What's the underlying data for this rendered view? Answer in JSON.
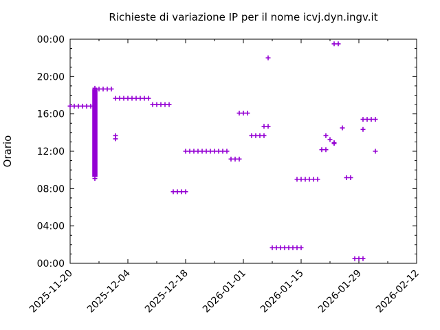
{
  "page": {
    "background": "#ffffff"
  },
  "chart_data": {
    "type": "scatter",
    "title": "Richieste di variazione IP per il nome icvj.dyn.ingv.it",
    "xlabel": "",
    "ylabel": "Orario",
    "legend": "none",
    "grid": false,
    "marker": "plus",
    "marker_color": "#9400d3",
    "axis_color": "#000000",
    "x_axis": {
      "start_date": "2025-11-20",
      "end_date": "2026-02-12",
      "major_tick_dates": [
        "2025-11-20",
        "2025-12-04",
        "2025-12-18",
        "2026-01-01",
        "2026-01-15",
        "2026-01-29",
        "2026-02-12"
      ],
      "minor_tick_interval_days": 7,
      "tick_label_rotation_deg": -45
    },
    "y_axis": {
      "span_hours": 24,
      "major_tick_interval_hours": 4,
      "minor_tick_interval_hours": 1,
      "major_tick_labels": [
        "00:00",
        "04:00",
        "08:00",
        "12:00",
        "16:00",
        "20:00",
        "00:00"
      ]
    },
    "dense_cluster": {
      "date": "2025-11-26",
      "time_start": "09:15",
      "time_end": "18:40"
    },
    "points": [
      {
        "date": "2025-11-20",
        "time": "16:50"
      },
      {
        "date": "2025-11-21",
        "time": "16:50"
      },
      {
        "date": "2025-11-22",
        "time": "16:50"
      },
      {
        "date": "2025-11-23",
        "time": "16:50"
      },
      {
        "date": "2025-11-24",
        "time": "16:50"
      },
      {
        "date": "2025-11-25",
        "time": "16:50"
      },
      {
        "date": "2025-11-26",
        "time": "18:45"
      },
      {
        "date": "2025-11-26",
        "time": "09:05"
      },
      {
        "date": "2025-11-27",
        "time": "18:40"
      },
      {
        "date": "2025-11-28",
        "time": "18:40"
      },
      {
        "date": "2025-11-29",
        "time": "18:40"
      },
      {
        "date": "2025-11-30",
        "time": "18:40"
      },
      {
        "date": "2025-12-01",
        "time": "13:40"
      },
      {
        "date": "2025-12-01",
        "time": "13:20"
      },
      {
        "date": "2025-12-01",
        "time": "17:40"
      },
      {
        "date": "2025-12-02",
        "time": "17:40"
      },
      {
        "date": "2025-12-03",
        "time": "17:40"
      },
      {
        "date": "2025-12-04",
        "time": "17:40"
      },
      {
        "date": "2025-12-05",
        "time": "17:40"
      },
      {
        "date": "2025-12-06",
        "time": "17:40"
      },
      {
        "date": "2025-12-07",
        "time": "17:40"
      },
      {
        "date": "2025-12-08",
        "time": "17:40"
      },
      {
        "date": "2025-12-09",
        "time": "17:40"
      },
      {
        "date": "2025-12-10",
        "time": "17:00"
      },
      {
        "date": "2025-12-11",
        "time": "17:00"
      },
      {
        "date": "2025-12-12",
        "time": "17:00"
      },
      {
        "date": "2025-12-13",
        "time": "17:00"
      },
      {
        "date": "2025-12-14",
        "time": "17:00"
      },
      {
        "date": "2025-12-15",
        "time": "07:40"
      },
      {
        "date": "2025-12-16",
        "time": "07:40"
      },
      {
        "date": "2025-12-17",
        "time": "07:40"
      },
      {
        "date": "2025-12-18",
        "time": "07:40"
      },
      {
        "date": "2025-12-18",
        "time": "12:00"
      },
      {
        "date": "2025-12-19",
        "time": "12:00"
      },
      {
        "date": "2025-12-20",
        "time": "12:00"
      },
      {
        "date": "2025-12-21",
        "time": "12:00"
      },
      {
        "date": "2025-12-22",
        "time": "12:00"
      },
      {
        "date": "2025-12-23",
        "time": "12:00"
      },
      {
        "date": "2025-12-24",
        "time": "12:00"
      },
      {
        "date": "2025-12-25",
        "time": "12:00"
      },
      {
        "date": "2025-12-26",
        "time": "12:00"
      },
      {
        "date": "2025-12-27",
        "time": "12:00"
      },
      {
        "date": "2025-12-28",
        "time": "12:00"
      },
      {
        "date": "2025-12-29",
        "time": "11:10"
      },
      {
        "date": "2025-12-30",
        "time": "11:10"
      },
      {
        "date": "2025-12-31",
        "time": "11:10"
      },
      {
        "date": "2025-12-31",
        "time": "16:05"
      },
      {
        "date": "2026-01-01",
        "time": "16:05"
      },
      {
        "date": "2026-01-02",
        "time": "16:05"
      },
      {
        "date": "2026-01-03",
        "time": "13:40"
      },
      {
        "date": "2026-01-04",
        "time": "13:40"
      },
      {
        "date": "2026-01-05",
        "time": "13:40"
      },
      {
        "date": "2026-01-06",
        "time": "13:40"
      },
      {
        "date": "2026-01-06",
        "time": "14:40"
      },
      {
        "date": "2026-01-07",
        "time": "14:40"
      },
      {
        "date": "2026-01-07",
        "time": "22:00"
      },
      {
        "date": "2026-01-08",
        "time": "01:40"
      },
      {
        "date": "2026-01-09",
        "time": "01:40"
      },
      {
        "date": "2026-01-10",
        "time": "01:40"
      },
      {
        "date": "2026-01-11",
        "time": "01:40"
      },
      {
        "date": "2026-01-12",
        "time": "01:40"
      },
      {
        "date": "2026-01-13",
        "time": "01:40"
      },
      {
        "date": "2026-01-14",
        "time": "01:40"
      },
      {
        "date": "2026-01-15",
        "time": "01:40"
      },
      {
        "date": "2026-01-14",
        "time": "09:00"
      },
      {
        "date": "2026-01-15",
        "time": "09:00"
      },
      {
        "date": "2026-01-16",
        "time": "09:00"
      },
      {
        "date": "2026-01-17",
        "time": "09:00"
      },
      {
        "date": "2026-01-18",
        "time": "09:00"
      },
      {
        "date": "2026-01-19",
        "time": "09:00"
      },
      {
        "date": "2026-01-20",
        "time": "12:10"
      },
      {
        "date": "2026-01-21",
        "time": "12:10"
      },
      {
        "date": "2026-01-21",
        "time": "13:40"
      },
      {
        "date": "2026-01-22",
        "time": "13:15"
      },
      {
        "date": "2026-01-23",
        "time": "12:55"
      },
      {
        "date": "2026-01-23",
        "time": "12:50"
      },
      {
        "date": "2026-01-23",
        "time": "23:30"
      },
      {
        "date": "2026-01-24",
        "time": "23:30"
      },
      {
        "date": "2026-01-25",
        "time": "14:30"
      },
      {
        "date": "2026-01-26",
        "time": "09:10"
      },
      {
        "date": "2026-01-27",
        "time": "09:10"
      },
      {
        "date": "2026-01-28",
        "time": "00:30"
      },
      {
        "date": "2026-01-29",
        "time": "00:30"
      },
      {
        "date": "2026-01-30",
        "time": "00:30"
      },
      {
        "date": "2026-01-30",
        "time": "15:25"
      },
      {
        "date": "2026-01-31",
        "time": "15:25"
      },
      {
        "date": "2026-02-01",
        "time": "15:25"
      },
      {
        "date": "2026-02-02",
        "time": "15:25"
      },
      {
        "date": "2026-01-30",
        "time": "14:20"
      },
      {
        "date": "2026-02-02",
        "time": "12:00"
      }
    ]
  }
}
